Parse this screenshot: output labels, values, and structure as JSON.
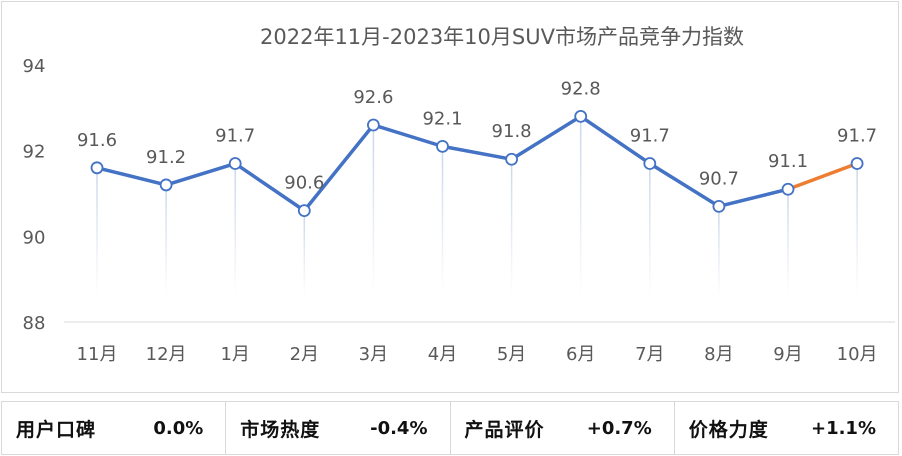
{
  "chart_data": {
    "type": "line",
    "title": "2022年11月-2023年10月SUV市场产品竞争力指数",
    "categories": [
      "11月",
      "12月",
      "1月",
      "2月",
      "3月",
      "4月",
      "5月",
      "6月",
      "7月",
      "8月",
      "9月",
      "10月"
    ],
    "values": [
      91.6,
      91.2,
      91.7,
      90.6,
      92.6,
      92.1,
      91.8,
      92.8,
      91.7,
      90.7,
      91.1,
      91.7
    ],
    "ylim": [
      88,
      94
    ],
    "yticks": [
      88,
      90,
      92,
      94
    ],
    "colors": {
      "line": "#4472c4",
      "last_segment": "#ed7d31",
      "axis_text": "#595959",
      "title": "#595959",
      "drop_line": "#c9d7ea"
    }
  },
  "metrics": [
    {
      "label": "用户口碑",
      "value": "0.0%"
    },
    {
      "label": "市场热度",
      "value": "-0.4%"
    },
    {
      "label": "产品评价",
      "value": "+0.7%"
    },
    {
      "label": "价格力度",
      "value": "+1.1%"
    }
  ]
}
